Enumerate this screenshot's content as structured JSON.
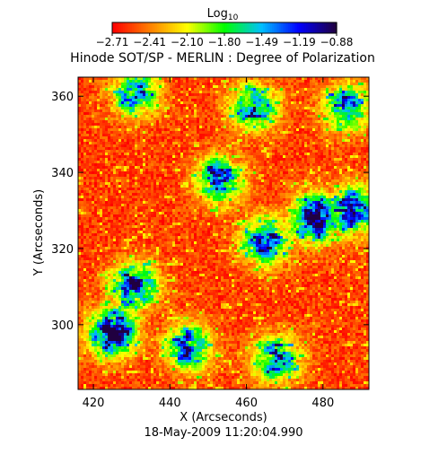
{
  "chart_data": {
    "type": "heatmap",
    "title": "Hinode SOT/SP - MERLIN : Degree of Polarization",
    "subtitle": "18-May-2009 11:20:04.990",
    "xlabel": "X (Arcseconds)",
    "ylabel": "Y (Arcseconds)",
    "xlim": [
      416,
      492
    ],
    "ylim": [
      283,
      365
    ],
    "x_ticks": [
      420,
      440,
      460,
      480
    ],
    "y_ticks": [
      300,
      320,
      340,
      360
    ],
    "colorbar": {
      "label_main": "Log",
      "label_sub": "10",
      "range": [
        -2.71,
        -0.88
      ],
      "tick_labels": [
        "-2.71",
        "-2.41",
        "-2.10",
        "-1.80",
        "-1.49",
        "-1.19",
        "-0.88"
      ],
      "colors": [
        "#ff0000",
        "#ff8000",
        "#ffff00",
        "#00ff00",
        "#00c0ff",
        "#0000ff",
        "#200040"
      ]
    },
    "features": [
      {
        "region": "lower-left network",
        "x": 425,
        "y": 298,
        "level": -0.95
      },
      {
        "region": "lower-left network",
        "x": 431,
        "y": 310,
        "level": -1.35
      },
      {
        "region": "upper-right network",
        "x": 478,
        "y": 328,
        "level": -1.2
      },
      {
        "region": "upper-right network",
        "x": 488,
        "y": 330,
        "level": -1.3
      },
      {
        "region": "center-right network",
        "x": 465,
        "y": 322,
        "level": -1.45
      },
      {
        "region": "center network",
        "x": 453,
        "y": 338,
        "level": -1.5
      },
      {
        "region": "top-center network",
        "x": 462,
        "y": 357,
        "level": -1.55
      },
      {
        "region": "top-left patch",
        "x": 431,
        "y": 361,
        "level": -1.6
      },
      {
        "region": "bottom-center patch",
        "x": 445,
        "y": 294,
        "level": -1.55
      },
      {
        "region": "bottom-right patch",
        "x": 468,
        "y": 291,
        "level": -1.5
      },
      {
        "region": "right-top patch",
        "x": 486,
        "y": 357,
        "level": -1.55
      }
    ],
    "background_level": -2.71,
    "grid": false
  }
}
